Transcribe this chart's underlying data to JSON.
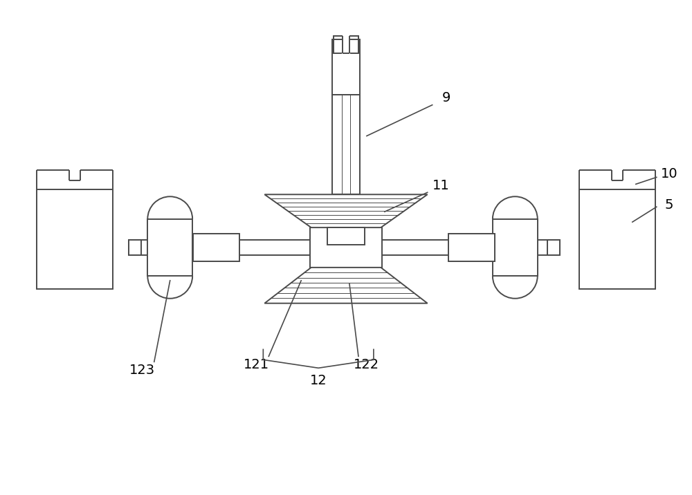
{
  "bg_color": "#ffffff",
  "line_color": "#4a4a4a",
  "lw": 1.4,
  "fig_width": 10.0,
  "fig_height": 7.16
}
